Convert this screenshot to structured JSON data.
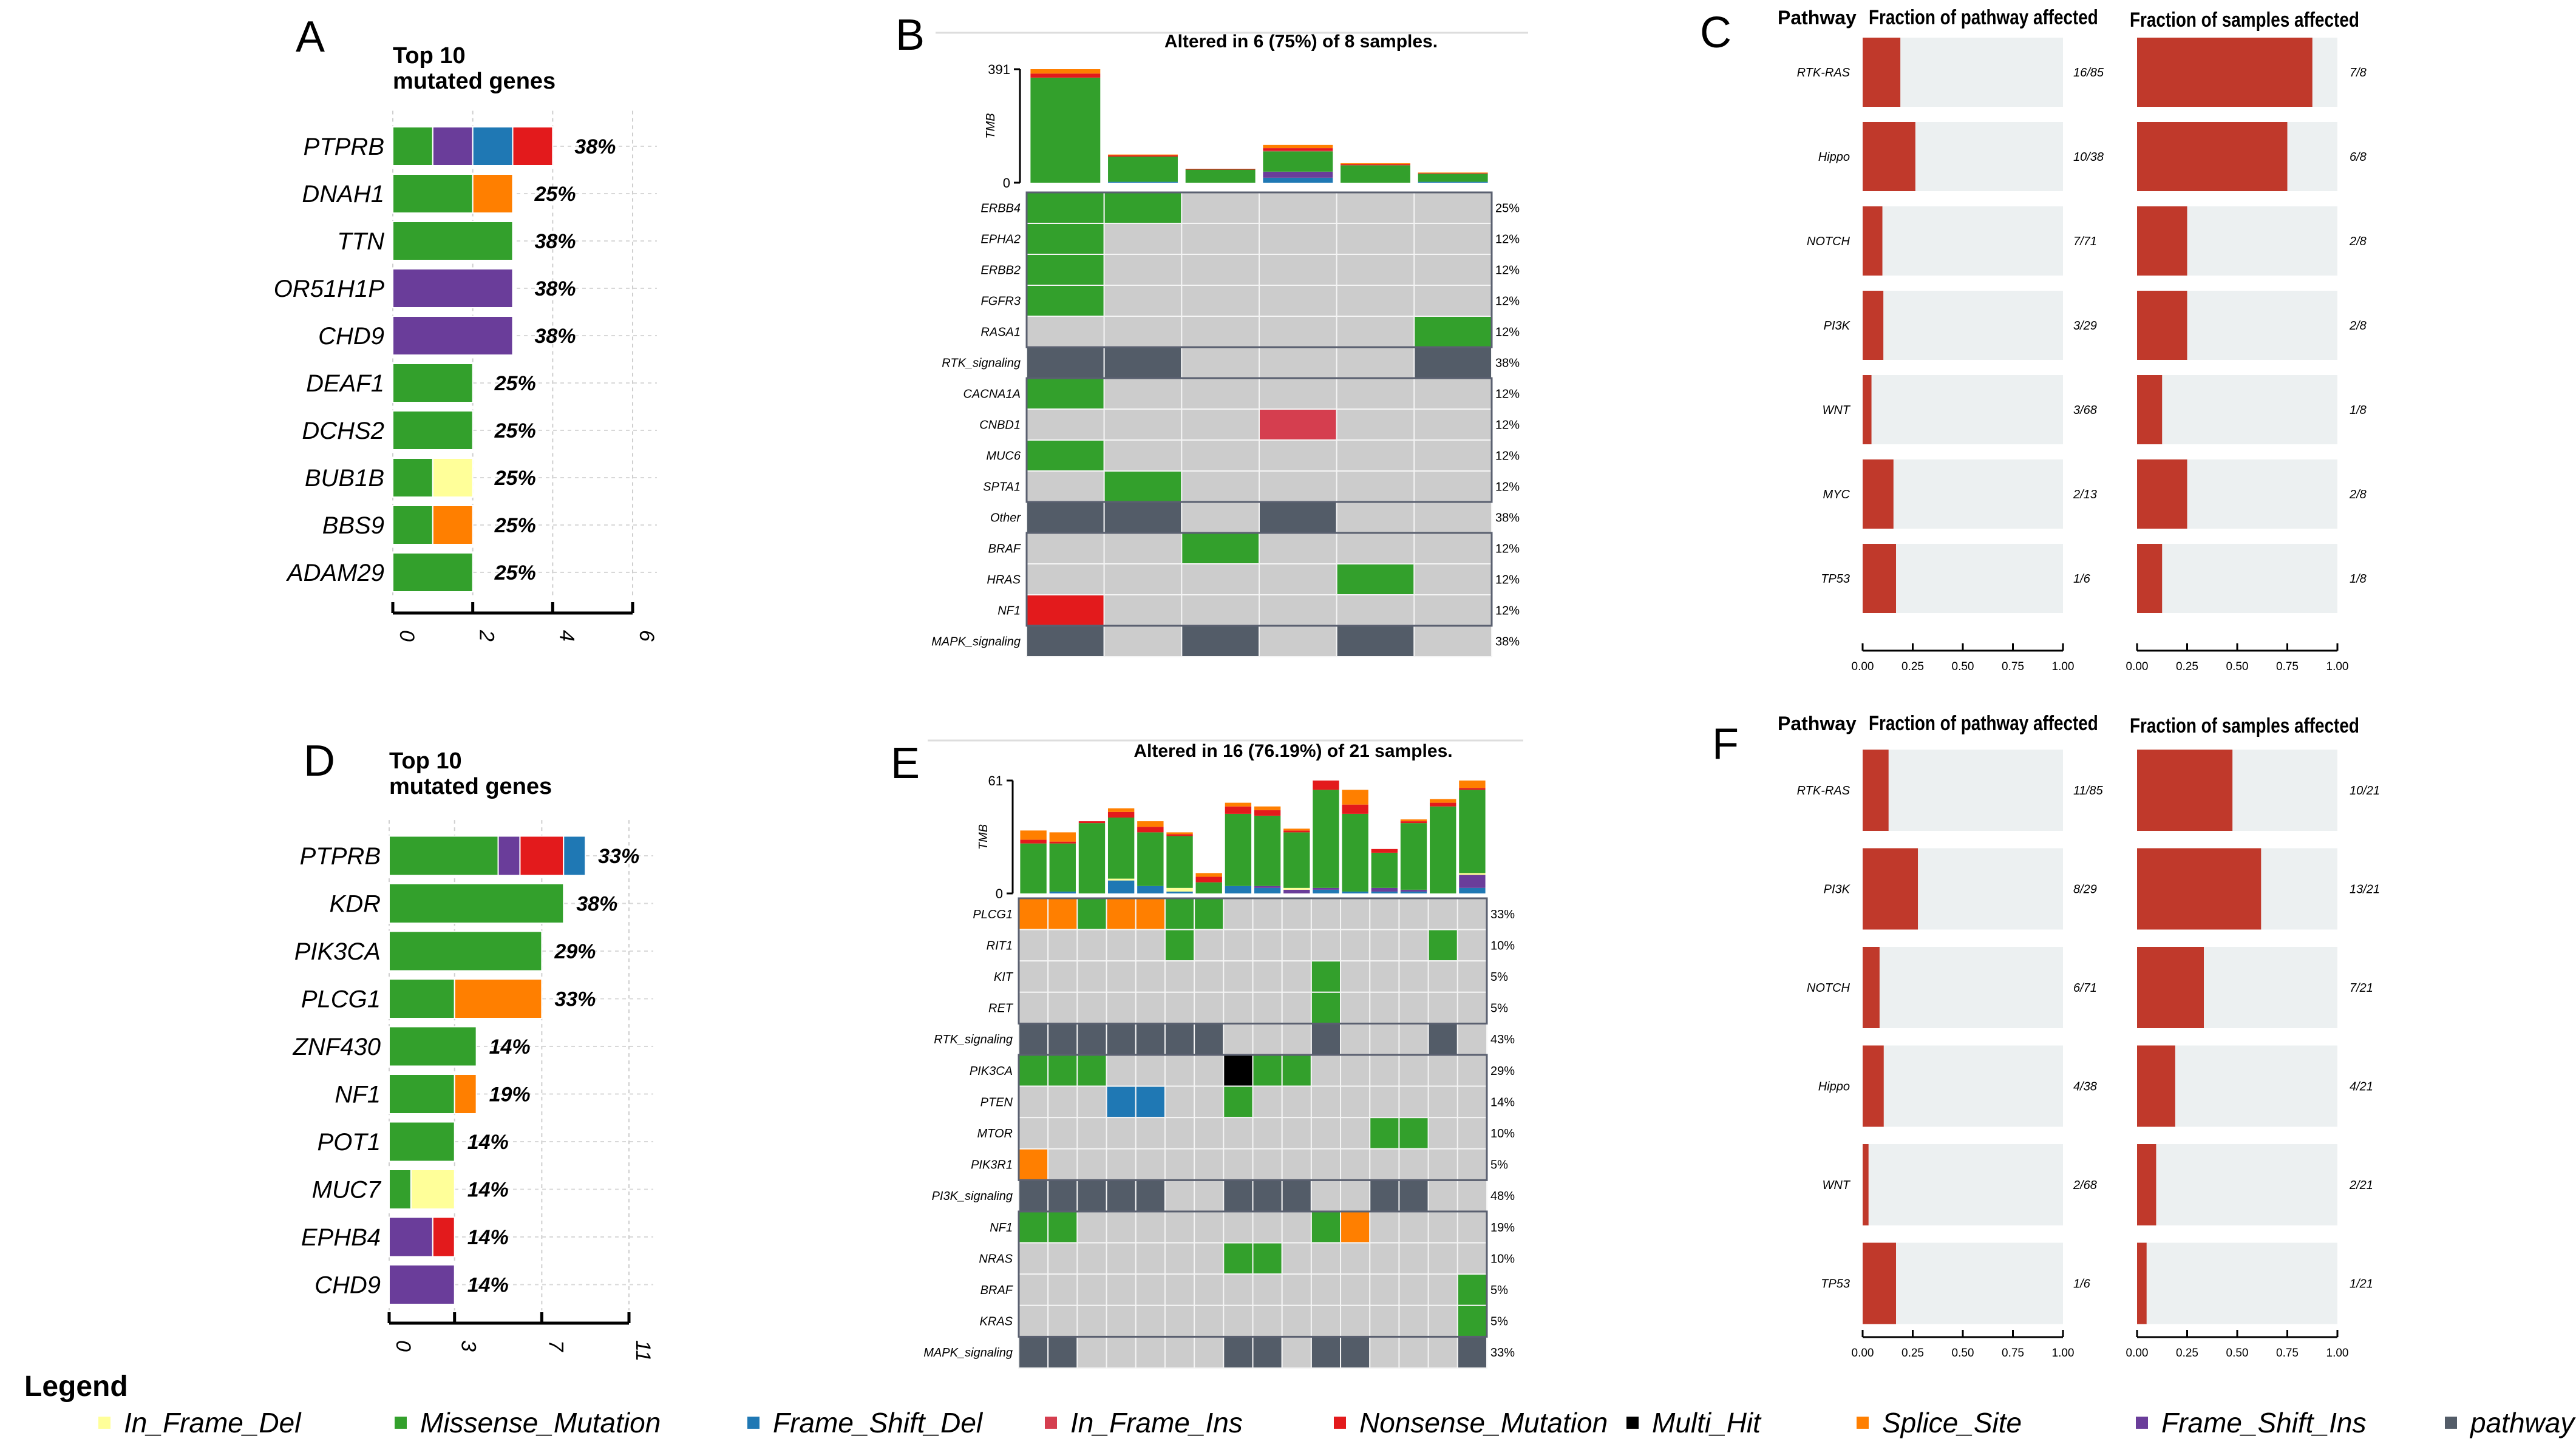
{
  "colors": {
    "D": "#ffff99",
    "M": "#33a02c",
    "F": "#1f78b4",
    "I": "#d53e4f",
    "N": "#e31a1c",
    "X": "#000000",
    "S": "#ff7f00",
    "R": "#6a3d9a",
    "P": "#535c68",
    "empty_cell": "#cccccc",
    "pathway_bar": "#c0392b",
    "pathway_bg": "#ecf0f1"
  },
  "legend": {
    "title": "Legend",
    "items": [
      {
        "code": "D",
        "label": "In_Frame_Del"
      },
      {
        "code": "M",
        "label": "Missense_Mutation"
      },
      {
        "code": "F",
        "label": "Frame_Shift_Del"
      },
      {
        "code": "I",
        "label": "In_Frame_Ins"
      },
      {
        "code": "N",
        "label": "Nonsense_Mutation"
      },
      {
        "code": "X",
        "label": "Multi_Hit"
      },
      {
        "code": "S",
        "label": "Splice_Site"
      },
      {
        "code": "R",
        "label": "Frame_Shift_Ins"
      },
      {
        "code": "P",
        "label": "pathway"
      }
    ]
  },
  "chart_data": [
    {
      "id": "A",
      "type": "bar",
      "label": "A",
      "title_line1": "Top 10",
      "title_line2": "mutated genes",
      "xlim": [
        0,
        6
      ],
      "ticks": [
        "0",
        "2",
        "4",
        "6"
      ],
      "genes": [
        {
          "name": "PTPRB",
          "pct": "38%",
          "segments": [
            {
              "code": "M",
              "n": 1
            },
            {
              "code": "R",
              "n": 1
            },
            {
              "code": "F",
              "n": 1
            },
            {
              "code": "N",
              "n": 1
            }
          ]
        },
        {
          "name": "DNAH1",
          "pct": "25%",
          "segments": [
            {
              "code": "M",
              "n": 2
            },
            {
              "code": "S",
              "n": 1
            }
          ]
        },
        {
          "name": "TTN",
          "pct": "38%",
          "segments": [
            {
              "code": "M",
              "n": 3
            }
          ]
        },
        {
          "name": "OR51H1P",
          "pct": "38%",
          "segments": [
            {
              "code": "R",
              "n": 3
            }
          ]
        },
        {
          "name": "CHD9",
          "pct": "38%",
          "segments": [
            {
              "code": "R",
              "n": 3
            }
          ]
        },
        {
          "name": "DEAF1",
          "pct": "25%",
          "segments": [
            {
              "code": "M",
              "n": 2
            }
          ]
        },
        {
          "name": "DCHS2",
          "pct": "25%",
          "segments": [
            {
              "code": "M",
              "n": 2
            }
          ]
        },
        {
          "name": "BUB1B",
          "pct": "25%",
          "segments": [
            {
              "code": "M",
              "n": 1
            },
            {
              "code": "D",
              "n": 1
            }
          ]
        },
        {
          "name": "BBS9",
          "pct": "25%",
          "segments": [
            {
              "code": "M",
              "n": 1
            },
            {
              "code": "S",
              "n": 1
            }
          ]
        },
        {
          "name": "ADAM29",
          "pct": "25%",
          "segments": [
            {
              "code": "M",
              "n": 2
            }
          ]
        }
      ]
    },
    {
      "id": "B",
      "type": "heatmap",
      "label": "B",
      "title": "Altered in 6 (75%) of 8 samples.",
      "tmb_axis_label": "TMB",
      "tmb_max": 391,
      "tmb_max_label": "391",
      "tmb_zero_label": "0",
      "tmb": [
        {
          "M": 362,
          "N": 14,
          "S": 15
        },
        {
          "F": 3,
          "M": 87,
          "N": 4,
          "S": 3
        },
        {
          "M": 45,
          "N": 3
        },
        {
          "F": 17,
          "R": 21,
          "I": 3,
          "M": 70,
          "N": 8,
          "S": 11
        },
        {
          "M": 60,
          "N": 4,
          "S": 3
        },
        {
          "F": 3,
          "M": 28,
          "N": 2,
          "S": 2
        }
      ],
      "rows": [
        {
          "name": "ERBB4",
          "pct": "25%",
          "cells": [
            "M",
            "M",
            "",
            "",
            "",
            ""
          ]
        },
        {
          "name": "EPHA2",
          "pct": "12%",
          "cells": [
            "M",
            "",
            "",
            "",
            "",
            ""
          ]
        },
        {
          "name": "ERBB2",
          "pct": "12%",
          "cells": [
            "M",
            "",
            "",
            "",
            "",
            ""
          ]
        },
        {
          "name": "FGFR3",
          "pct": "12%",
          "cells": [
            "M",
            "",
            "",
            "",
            "",
            ""
          ]
        },
        {
          "name": "RASA1",
          "pct": "12%",
          "cells": [
            "",
            "",
            "",
            "",
            "",
            "M"
          ]
        },
        {
          "name": "RTK_signaling",
          "pct": "38%",
          "cells": [
            "P",
            "P",
            "",
            "",
            "",
            "P"
          ]
        },
        {
          "name": "CACNA1A",
          "pct": "12%",
          "cells": [
            "M",
            "",
            "",
            "",
            "",
            ""
          ]
        },
        {
          "name": "CNBD1",
          "pct": "12%",
          "cells": [
            "",
            "",
            "",
            "I",
            "",
            ""
          ]
        },
        {
          "name": "MUC6",
          "pct": "12%",
          "cells": [
            "M",
            "",
            "",
            "",
            "",
            ""
          ]
        },
        {
          "name": "SPTA1",
          "pct": "12%",
          "cells": [
            "",
            "M",
            "",
            "",
            "",
            ""
          ]
        },
        {
          "name": "Other",
          "pct": "38%",
          "cells": [
            "P",
            "P",
            "",
            "P",
            "",
            ""
          ]
        },
        {
          "name": "BRAF",
          "pct": "12%",
          "cells": [
            "",
            "",
            "M",
            "",
            "",
            ""
          ]
        },
        {
          "name": "HRAS",
          "pct": "12%",
          "cells": [
            "",
            "",
            "",
            "",
            "M",
            ""
          ]
        },
        {
          "name": "NF1",
          "pct": "12%",
          "cells": [
            "N",
            "",
            "",
            "",
            "",
            ""
          ]
        },
        {
          "name": "MAPK_signaling",
          "pct": "38%",
          "cells": [
            "P",
            "",
            "P",
            "",
            "P",
            ""
          ]
        }
      ]
    },
    {
      "id": "C",
      "type": "bar",
      "label": "C",
      "header_pathway": "Pathway",
      "header_left": "Fraction of pathway affected",
      "header_right": "Fraction of samples affected",
      "xlim": [
        0,
        1
      ],
      "ticks": [
        "0.00",
        "0.25",
        "0.50",
        "0.75",
        "1.00"
      ],
      "rows": [
        {
          "name": "RTK-RAS",
          "pathway": "16/85",
          "samples": "7/8"
        },
        {
          "name": "Hippo",
          "pathway": "10/38",
          "samples": "6/8"
        },
        {
          "name": "NOTCH",
          "pathway": "7/71",
          "samples": "2/8"
        },
        {
          "name": "PI3K",
          "pathway": "3/29",
          "samples": "2/8"
        },
        {
          "name": "WNT",
          "pathway": "3/68",
          "samples": "1/8"
        },
        {
          "name": "MYC",
          "pathway": "2/13",
          "samples": "2/8"
        },
        {
          "name": "TP53",
          "pathway": "1/6",
          "samples": "1/8"
        }
      ]
    },
    {
      "id": "D",
      "type": "bar",
      "label": "D",
      "title_line1": "Top 10",
      "title_line2": "mutated genes",
      "xlim": [
        0,
        11
      ],
      "ticks": [
        "0",
        "3",
        "7",
        "11"
      ],
      "genes": [
        {
          "name": "PTPRB",
          "pct": "33%",
          "segments": [
            {
              "code": "M",
              "n": 5
            },
            {
              "code": "R",
              "n": 1
            },
            {
              "code": "N",
              "n": 2
            },
            {
              "code": "F",
              "n": 1
            }
          ]
        },
        {
          "name": "KDR",
          "pct": "38%",
          "segments": [
            {
              "code": "M",
              "n": 8
            }
          ]
        },
        {
          "name": "PIK3CA",
          "pct": "29%",
          "segments": [
            {
              "code": "M",
              "n": 7
            }
          ]
        },
        {
          "name": "PLCG1",
          "pct": "33%",
          "segments": [
            {
              "code": "M",
              "n": 3
            },
            {
              "code": "S",
              "n": 4
            }
          ]
        },
        {
          "name": "ZNF430",
          "pct": "14%",
          "segments": [
            {
              "code": "M",
              "n": 4
            }
          ]
        },
        {
          "name": "NF1",
          "pct": "19%",
          "segments": [
            {
              "code": "M",
              "n": 3
            },
            {
              "code": "S",
              "n": 1
            }
          ]
        },
        {
          "name": "POT1",
          "pct": "14%",
          "segments": [
            {
              "code": "M",
              "n": 3
            }
          ]
        },
        {
          "name": "MUC7",
          "pct": "14%",
          "segments": [
            {
              "code": "M",
              "n": 1
            },
            {
              "code": "D",
              "n": 2
            }
          ]
        },
        {
          "name": "EPHB4",
          "pct": "14%",
          "segments": [
            {
              "code": "R",
              "n": 2
            },
            {
              "code": "N",
              "n": 1
            }
          ]
        },
        {
          "name": "CHD9",
          "pct": "14%",
          "segments": [
            {
              "code": "R",
              "n": 3
            }
          ]
        }
      ]
    },
    {
      "id": "E",
      "type": "heatmap",
      "label": "E",
      "title": "Altered in 16 (76.19%) of 21 samples.",
      "tmb_axis_label": "TMB",
      "tmb_max": 61,
      "tmb_max_label": "61",
      "tmb_zero_label": "0",
      "tmb": [
        {
          "M": 27,
          "N": 2,
          "S": 5
        },
        {
          "F": 1,
          "N": 1,
          "M": 26,
          "S": 5
        },
        {
          "M": 38,
          "N": 1
        },
        {
          "F": 7,
          "D": 1,
          "M": 33,
          "N": 3,
          "S": 2
        },
        {
          "F": 4,
          "M": 29,
          "N": 3,
          "S": 3
        },
        {
          "F": 1,
          "D": 2,
          "M": 28,
          "N": 1,
          "S": 1
        },
        {
          "M": 6,
          "N": 3,
          "S": 2
        },
        {
          "F": 4,
          "M": 39,
          "N": 4,
          "S": 2
        },
        {
          "F": 3,
          "R": 1,
          "M": 38,
          "N": 3,
          "S": 2
        },
        {
          "R": 2,
          "D": 1,
          "M": 30,
          "N": 1,
          "S": 1
        },
        {
          "F": 2,
          "R": 1,
          "M": 53,
          "N": 5
        },
        {
          "F": 1,
          "M": 42,
          "N": 5,
          "S": 8
        },
        {
          "F": 1,
          "R": 2,
          "M": 19,
          "N": 2
        },
        {
          "F": 1,
          "R": 1,
          "M": 36,
          "N": 1,
          "S": 1
        },
        {
          "M": 47,
          "N": 2,
          "S": 2
        },
        {
          "F": 3,
          "R": 7,
          "D": 1,
          "M": 45,
          "N": 1,
          "S": 4
        }
      ],
      "rows": [
        {
          "name": "PLCG1",
          "pct": "33%",
          "cells": [
            "S",
            "S",
            "M",
            "S",
            "S",
            "M",
            "M",
            "",
            "",
            "",
            "",
            "",
            "",
            "",
            "",
            ""
          ]
        },
        {
          "name": "RIT1",
          "pct": "10%",
          "cells": [
            "",
            "",
            "",
            "",
            "",
            "M",
            "",
            "",
            "",
            "",
            "",
            "",
            "",
            "",
            "M",
            ""
          ]
        },
        {
          "name": "KIT",
          "pct": "5%",
          "cells": [
            "",
            "",
            "",
            "",
            "",
            "",
            "",
            "",
            "",
            "",
            "M",
            "",
            "",
            "",
            "",
            ""
          ]
        },
        {
          "name": "RET",
          "pct": "5%",
          "cells": [
            "",
            "",
            "",
            "",
            "",
            "",
            "",
            "",
            "",
            "",
            "M",
            "",
            "",
            "",
            "",
            ""
          ]
        },
        {
          "name": "RTK_signaling",
          "pct": "43%",
          "cells": [
            "P",
            "P",
            "P",
            "P",
            "P",
            "P",
            "P",
            "",
            "",
            "",
            "P",
            "",
            "",
            "",
            "P",
            ""
          ]
        },
        {
          "name": "PIK3CA",
          "pct": "29%",
          "cells": [
            "M",
            "M",
            "M",
            "",
            "",
            "",
            "",
            "X",
            "M",
            "M",
            "",
            "",
            "",
            "",
            "",
            ""
          ]
        },
        {
          "name": "PTEN",
          "pct": "14%",
          "cells": [
            "",
            "",
            "",
            "F",
            "F",
            "",
            "",
            "M",
            "",
            "",
            "",
            "",
            "",
            "",
            "",
            ""
          ]
        },
        {
          "name": "MTOR",
          "pct": "10%",
          "cells": [
            "",
            "",
            "",
            "",
            "",
            "",
            "",
            "",
            "",
            "",
            "",
            "",
            "M",
            "M",
            "",
            ""
          ]
        },
        {
          "name": "PIK3R1",
          "pct": "5%",
          "cells": [
            "S",
            "",
            "",
            "",
            "",
            "",
            "",
            "",
            "",
            "",
            "",
            "",
            "",
            "",
            "",
            ""
          ]
        },
        {
          "name": "PI3K_signaling",
          "pct": "48%",
          "cells": [
            "P",
            "P",
            "P",
            "P",
            "P",
            "",
            "",
            "P",
            "P",
            "P",
            "",
            "",
            "P",
            "P",
            "",
            ""
          ]
        },
        {
          "name": "NF1",
          "pct": "19%",
          "cells": [
            "M",
            "M",
            "",
            "",
            "",
            "",
            "",
            "",
            "",
            "",
            "M",
            "S",
            "",
            "",
            "",
            ""
          ]
        },
        {
          "name": "NRAS",
          "pct": "10%",
          "cells": [
            "",
            "",
            "",
            "",
            "",
            "",
            "",
            "M",
            "M",
            "",
            "",
            "",
            "",
            "",
            "",
            ""
          ]
        },
        {
          "name": "BRAF",
          "pct": "5%",
          "cells": [
            "",
            "",
            "",
            "",
            "",
            "",
            "",
            "",
            "",
            "",
            "",
            "",
            "",
            "",
            "",
            "M"
          ]
        },
        {
          "name": "KRAS",
          "pct": "5%",
          "cells": [
            "",
            "",
            "",
            "",
            "",
            "",
            "",
            "",
            "",
            "",
            "",
            "",
            "",
            "",
            "",
            "M"
          ]
        },
        {
          "name": "MAPK_signaling",
          "pct": "33%",
          "cells": [
            "P",
            "P",
            "",
            "",
            "",
            "",
            "",
            "P",
            "P",
            "",
            "P",
            "P",
            "",
            "",
            "",
            "P"
          ]
        }
      ]
    },
    {
      "id": "F",
      "type": "bar",
      "label": "F",
      "header_pathway": "Pathway",
      "header_left": "Fraction of pathway affected",
      "header_right": "Fraction of samples affected",
      "xlim": [
        0,
        1
      ],
      "ticks": [
        "0.00",
        "0.25",
        "0.50",
        "0.75",
        "1.00"
      ],
      "rows": [
        {
          "name": "RTK-RAS",
          "pathway": "11/85",
          "samples": "10/21"
        },
        {
          "name": "PI3K",
          "pathway": "8/29",
          "samples": "13/21"
        },
        {
          "name": "NOTCH",
          "pathway": "6/71",
          "samples": "7/21"
        },
        {
          "name": "Hippo",
          "pathway": "4/38",
          "samples": "4/21"
        },
        {
          "name": "WNT",
          "pathway": "2/68",
          "samples": "2/21"
        },
        {
          "name": "TP53",
          "pathway": "1/6",
          "samples": "1/21"
        }
      ]
    }
  ]
}
